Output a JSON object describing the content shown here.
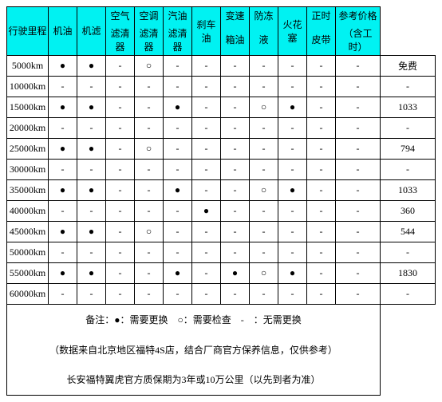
{
  "headers": {
    "row1": [
      "行驶里程",
      "机油",
      "机滤",
      "空气",
      "空调",
      "汽油",
      "刹车油",
      "变速",
      "防冻",
      "火花塞",
      "正时",
      "参考价格"
    ],
    "row2": [
      "",
      "",
      "",
      "滤清器",
      "滤清器",
      "滤清器",
      "",
      "箱油",
      "液",
      "",
      "皮带",
      "（含工时）"
    ]
  },
  "rows": [
    {
      "km": "5000km",
      "cells": [
        "●",
        "●",
        "-",
        "○",
        "-",
        "-",
        "-",
        "-",
        "-",
        "-",
        "-"
      ],
      "price": "免费"
    },
    {
      "km": "10000km",
      "cells": [
        "-",
        "-",
        "-",
        "-",
        "-",
        "-",
        "-",
        "-",
        "-",
        "-",
        "-"
      ],
      "price": "-"
    },
    {
      "km": "15000km",
      "cells": [
        "●",
        "●",
        "-",
        "-",
        "●",
        "-",
        "-",
        "○",
        "●",
        "-",
        "-"
      ],
      "price": "1033"
    },
    {
      "km": "20000km",
      "cells": [
        "-",
        "-",
        "-",
        "-",
        "-",
        "-",
        "-",
        "-",
        "-",
        "-",
        "-"
      ],
      "price": "-"
    },
    {
      "km": "25000km",
      "cells": [
        "●",
        "●",
        "-",
        "○",
        "-",
        "-",
        "-",
        "-",
        "-",
        "-",
        "-"
      ],
      "price": "794"
    },
    {
      "km": "30000km",
      "cells": [
        "-",
        "-",
        "-",
        "-",
        "-",
        "-",
        "-",
        "-",
        "-",
        "-",
        "-"
      ],
      "price": "-"
    },
    {
      "km": "35000km",
      "cells": [
        "●",
        "●",
        "-",
        "-",
        "●",
        "-",
        "-",
        "○",
        "●",
        "-",
        "-"
      ],
      "price": "1033"
    },
    {
      "km": "40000km",
      "cells": [
        "-",
        "-",
        "-",
        "-",
        "-",
        "●",
        "-",
        "-",
        "-",
        "-",
        "-"
      ],
      "price": "360"
    },
    {
      "km": "45000km",
      "cells": [
        "●",
        "●",
        "-",
        "○",
        "-",
        "-",
        "-",
        "-",
        "-",
        "-",
        "-"
      ],
      "price": "544"
    },
    {
      "km": "50000km",
      "cells": [
        "-",
        "-",
        "-",
        "-",
        "-",
        "-",
        "-",
        "-",
        "-",
        "-",
        "-"
      ],
      "price": "-"
    },
    {
      "km": "55000km",
      "cells": [
        "●",
        "●",
        "-",
        "-",
        "●",
        "-",
        "●",
        "○",
        "●",
        "-",
        "-"
      ],
      "price": "1830"
    },
    {
      "km": "60000km",
      "cells": [
        "-",
        "-",
        "-",
        "-",
        "-",
        "-",
        "-",
        "-",
        "-",
        "-",
        "-"
      ],
      "price": "-"
    }
  ],
  "notes": [
    "备注：●：需要更换　○：需要检查　-　：无需更换",
    "（数据来自北京地区福特4S店，结合厂商官方保养信息，仅供参考）",
    "长安福特翼虎官方质保期为3年或10万公里（以先到者为准）"
  ],
  "colors": {
    "header_bg": "#00f2f2",
    "border": "#000000"
  }
}
